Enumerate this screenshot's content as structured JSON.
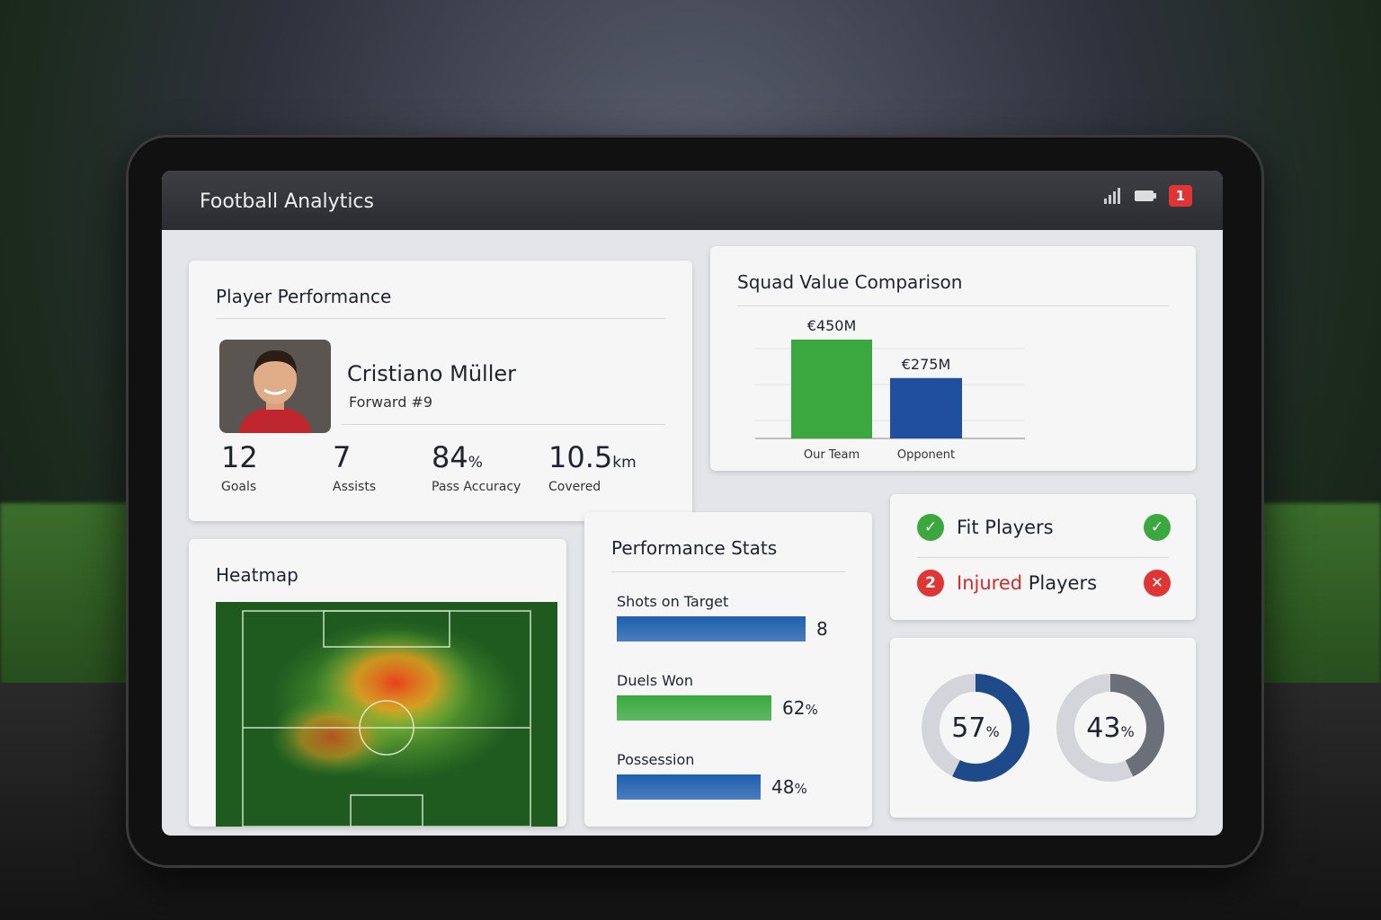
{
  "header": {
    "title": "Football Analytics",
    "alert_count": 1
  },
  "player_performance": {
    "title": "Player Performance",
    "name": "Cristiano Müller",
    "position": "Forward #9",
    "stats": [
      {
        "value": 12,
        "label": "Goals"
      },
      {
        "value": 7,
        "label": "Assists"
      },
      {
        "value": 84,
        "unit": "%",
        "label": "Pass Accuracy"
      },
      {
        "value": 10.5,
        "unit": "km",
        "label": "Covered"
      }
    ]
  },
  "squad_value": {
    "title": "Squad Value Comparison",
    "categories": [
      "Our Team",
      "Opponent"
    ],
    "values": [
      450,
      275
    ],
    "value_labels": [
      "€450M",
      "€275M"
    ],
    "colors": [
      "#3aa83f",
      "#1f4f9e"
    ]
  },
  "heatmap": {
    "title": "Heatmap"
  },
  "performance_stats": {
    "title": "Performance Stats",
    "items": [
      {
        "label": "Shots on Target",
        "value": 8,
        "color": "#1f5fae"
      },
      {
        "label": "Duels Won",
        "value": 62,
        "unit": "%",
        "color": "#3aa83f"
      },
      {
        "label": "Possession",
        "value": 48,
        "unit": "%",
        "color": "#1f5fae"
      }
    ]
  },
  "squad_status": {
    "fit": "Fit Players",
    "injured_count": 2,
    "injured": "Injured",
    "injured_suffix": "Players"
  },
  "rings": {
    "values": [
      57,
      43
    ],
    "unit": "%",
    "colors": [
      "#1e4a8a",
      "#6b7078"
    ]
  }
}
